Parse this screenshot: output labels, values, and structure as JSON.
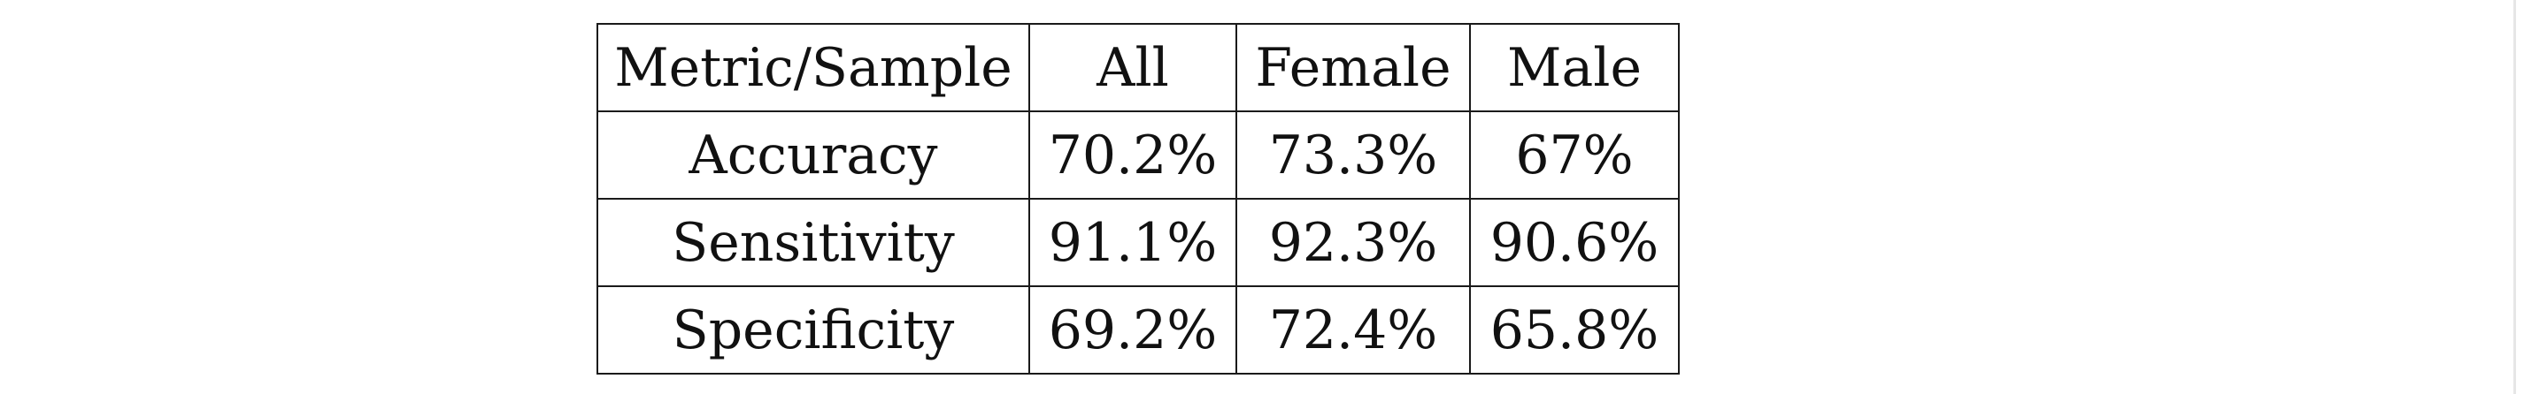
{
  "table": {
    "columns": [
      "Metric/Sample",
      "All",
      "Female",
      "Male"
    ],
    "rows": [
      [
        "Accuracy",
        "70.2%",
        "73.3%",
        "67%"
      ],
      [
        "Sensitivity",
        "91.1%",
        "92.3%",
        "90.6%"
      ],
      [
        "Specificity",
        "69.2%",
        "72.4%",
        "65.8%"
      ]
    ]
  }
}
